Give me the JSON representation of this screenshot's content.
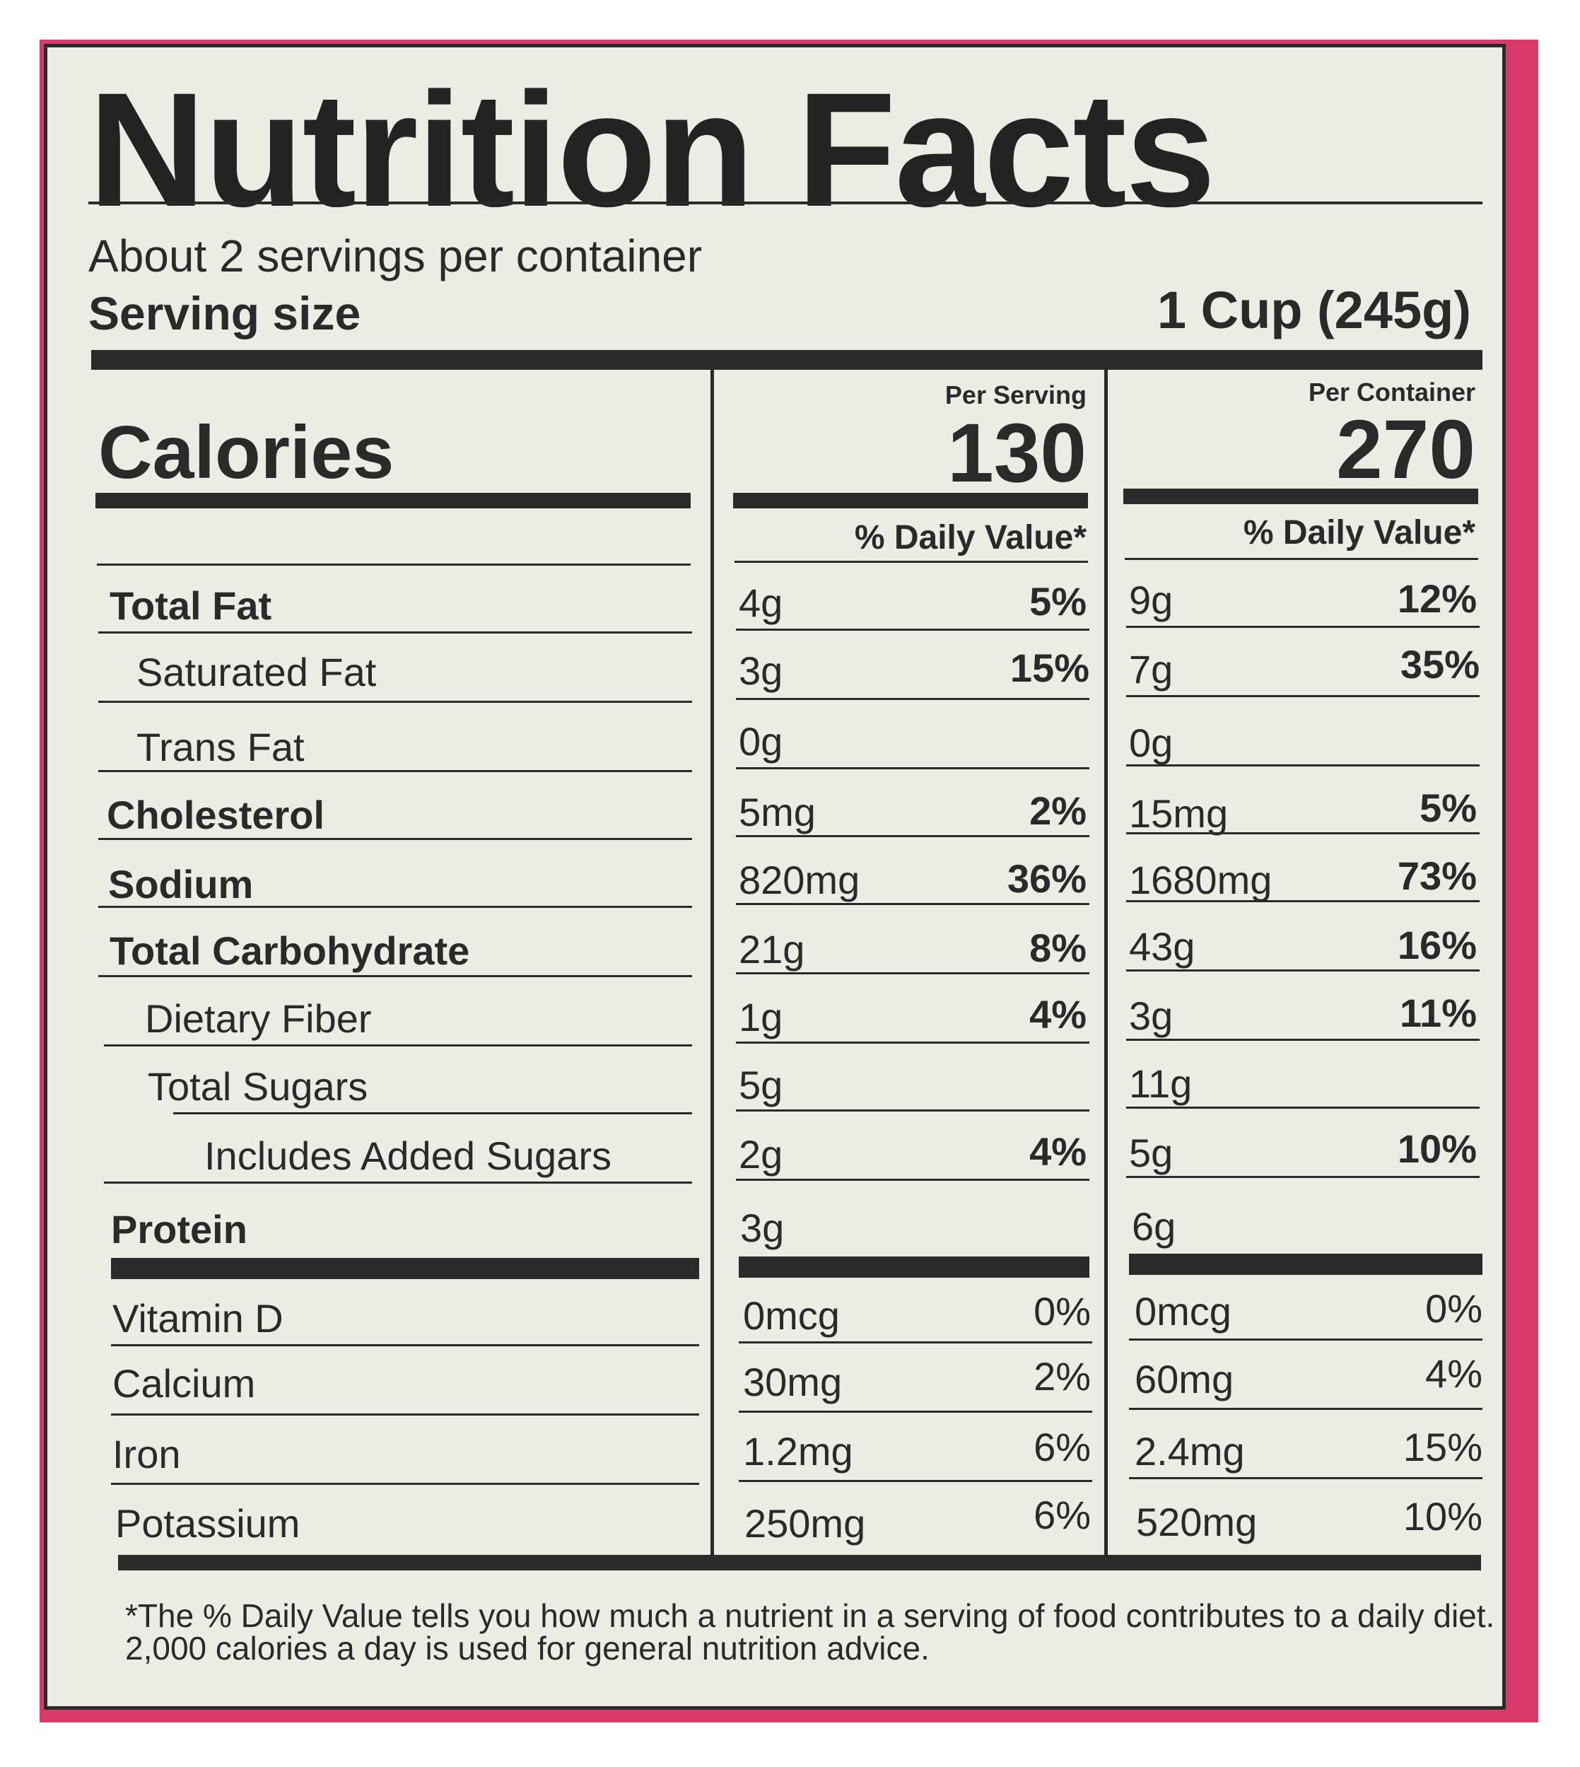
{
  "title": "Nutrition Facts",
  "servings_per_container": "About 2 servings per container",
  "serving_size_label": "Serving size",
  "serving_size_value": "1 Cup (245g)",
  "calories_label": "Calories",
  "per_serving": {
    "label": "Per Serving",
    "calories": "130",
    "dv_header": "% Daily Value*"
  },
  "per_container": {
    "label": "Per Container",
    "calories": "270",
    "dv_header": "% Daily Value*"
  },
  "nutrients": [
    {
      "name": "Total Fat",
      "s_amt": "4g",
      "s_pct": "5%",
      "c_amt": "9g",
      "c_pct": "12%"
    },
    {
      "name": "Saturated Fat",
      "s_amt": "3g",
      "s_pct": "15%",
      "c_amt": "7g",
      "c_pct": "35%"
    },
    {
      "name": "Trans Fat",
      "s_amt": "0g",
      "s_pct": "",
      "c_amt": "0g",
      "c_pct": ""
    },
    {
      "name": "Cholesterol",
      "s_amt": "5mg",
      "s_pct": "2%",
      "c_amt": "15mg",
      "c_pct": "5%"
    },
    {
      "name": "Sodium",
      "s_amt": "820mg",
      "s_pct": "36%",
      "c_amt": "1680mg",
      "c_pct": "73%"
    },
    {
      "name": "Total Carbohydrate",
      "s_amt": "21g",
      "s_pct": "8%",
      "c_amt": "43g",
      "c_pct": "16%"
    },
    {
      "name": "Dietary Fiber",
      "s_amt": "1g",
      "s_pct": "4%",
      "c_amt": "3g",
      "c_pct": "11%"
    },
    {
      "name": "Total Sugars",
      "s_amt": "5g",
      "s_pct": "",
      "c_amt": "11g",
      "c_pct": ""
    },
    {
      "name": "Includes Added Sugars",
      "s_amt": "2g",
      "s_pct": "4%",
      "c_amt": "5g",
      "c_pct": "10%"
    },
    {
      "name": "Protein",
      "s_amt": "3g",
      "s_pct": "",
      "c_amt": "6g",
      "c_pct": ""
    }
  ],
  "vitamins": [
    {
      "name": "Vitamin D",
      "s_amt": "0mcg",
      "s_pct": "0%",
      "c_amt": "0mcg",
      "c_pct": "0%"
    },
    {
      "name": "Calcium",
      "s_amt": "30mg",
      "s_pct": "2%",
      "c_amt": "60mg",
      "c_pct": "4%"
    },
    {
      "name": "Iron",
      "s_amt": "1.2mg",
      "s_pct": "6%",
      "c_amt": "2.4mg",
      "c_pct": "15%"
    },
    {
      "name": "Potassium",
      "s_amt": "250mg",
      "s_pct": "6%",
      "c_amt": "520mg",
      "c_pct": "10%"
    }
  ],
  "footnote": "*The % Daily Value tells you how much a nutrient in a serving of food contributes to a daily diet. 2,000 calories a day is used for general nutrition advice."
}
